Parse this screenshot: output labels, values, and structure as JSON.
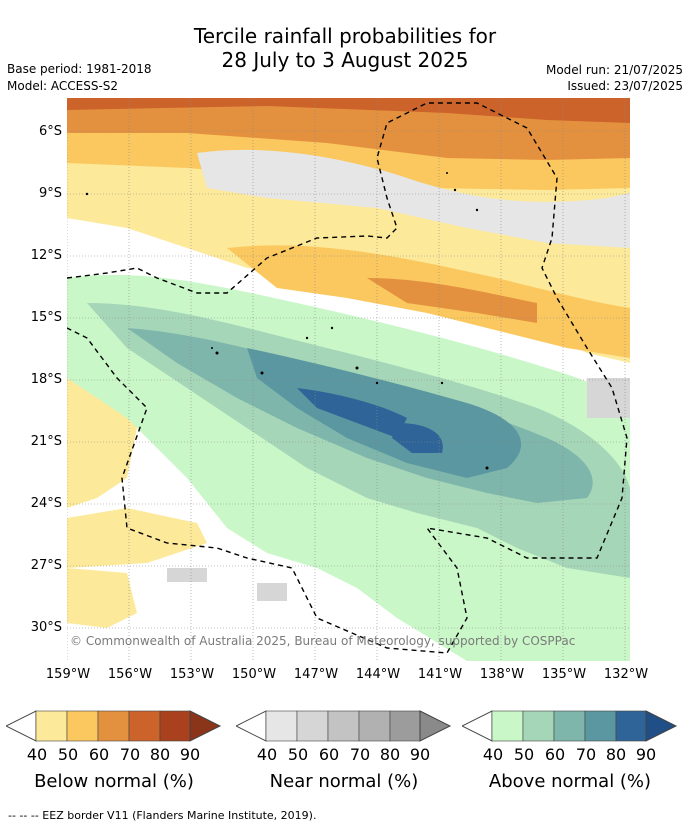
{
  "title_line1": "Tercile rainfall probabilities for",
  "title_line2": "28 July to 3 August 2025",
  "base_period": "Base period: 1981-2018",
  "model": "Model: ACCESS-S2",
  "model_run": "Model run: 21/07/2025",
  "issued": "Issued: 23/07/2025",
  "copyright": "© Commonwealth of Australia 2025, Bureau of Meteorology, supported by COSPPac",
  "lat_ticks": [
    "6°S",
    "9°S",
    "12°S",
    "15°S",
    "18°S",
    "21°S",
    "24°S",
    "27°S",
    "30°S"
  ],
  "lon_ticks": [
    "159°W",
    "156°W",
    "153°W",
    "150°W",
    "147°W",
    "144°W",
    "141°W",
    "138°W",
    "135°W",
    "132°W"
  ],
  "colorbars": [
    {
      "label": "Below normal (%)",
      "ticks": [
        "40",
        "50",
        "60",
        "70",
        "80",
        "90"
      ],
      "colors": [
        "#fde99a",
        "#fbc85f",
        "#e4913f",
        "#cc632b",
        "#a9411e",
        "#8a3419"
      ]
    },
    {
      "label": "Near normal (%)",
      "ticks": [
        "40",
        "50",
        "60",
        "70",
        "80",
        "90"
      ],
      "colors": [
        "#e6e6e6",
        "#d6d6d6",
        "#c3c3c3",
        "#b1b1b1",
        "#9c9c9c",
        "#8a8a8a"
      ]
    },
    {
      "label": "Above normal (%)",
      "ticks": [
        "40",
        "50",
        "60",
        "70",
        "80",
        "90"
      ],
      "colors": [
        "#c9f7c8",
        "#a6d6b8",
        "#7fb6ab",
        "#5a97a0",
        "#2e6497",
        "#1f4f86"
      ]
    }
  ],
  "footnote": "--  --  -- EEZ border V11 (Flanders Marine Institute, 2019)."
}
